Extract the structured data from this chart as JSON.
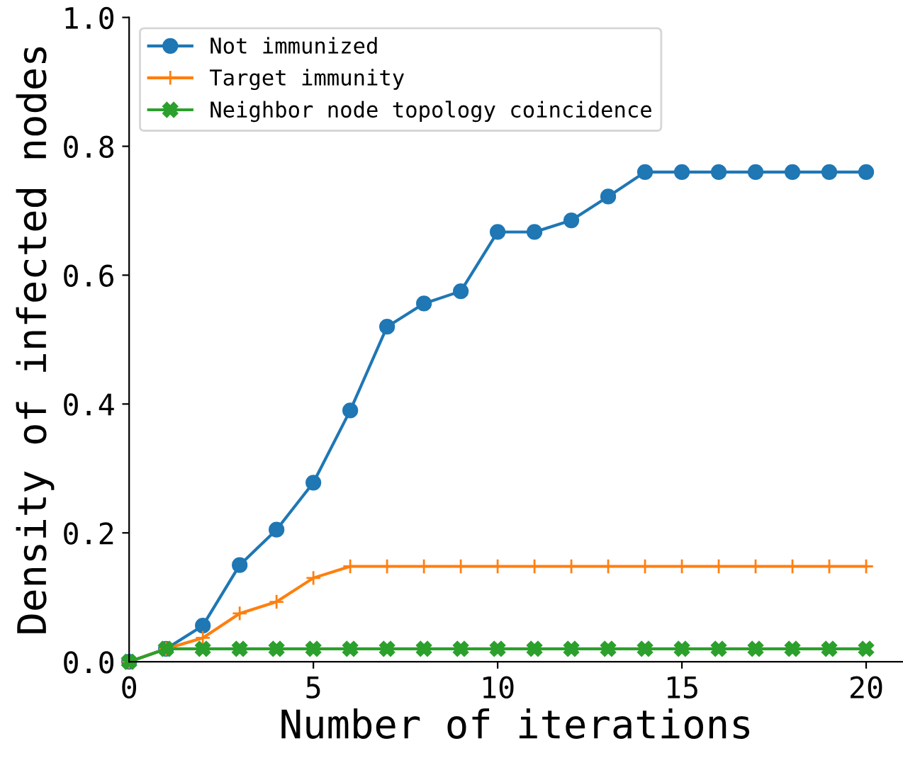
{
  "chart_data": {
    "type": "line",
    "xlabel": "Number of iterations",
    "ylabel": "Density of infected nodes",
    "x": [
      0,
      1,
      2,
      3,
      4,
      5,
      6,
      7,
      8,
      9,
      10,
      11,
      12,
      13,
      14,
      15,
      16,
      17,
      18,
      19,
      20
    ],
    "series": [
      {
        "name": "Not immunized",
        "color": "#1f77b4",
        "marker": "circle",
        "values": [
          0,
          0.02,
          0.056,
          0.15,
          0.205,
          0.278,
          0.39,
          0.52,
          0.556,
          0.575,
          0.667,
          0.667,
          0.685,
          0.722,
          0.76,
          0.76,
          0.76,
          0.76,
          0.76,
          0.76,
          0.76
        ]
      },
      {
        "name": "Target immunity",
        "color": "#ff7f0e",
        "marker": "cross",
        "values": [
          0,
          0.02,
          0.037,
          0.075,
          0.093,
          0.13,
          0.148,
          0.148,
          0.148,
          0.148,
          0.148,
          0.148,
          0.148,
          0.148,
          0.148,
          0.148,
          0.148,
          0.148,
          0.148,
          0.148,
          0.148
        ]
      },
      {
        "name": "Neighbor node topology coincidence",
        "color": "#2ca02c",
        "marker": "x",
        "values": [
          0,
          0.02,
          0.02,
          0.02,
          0.02,
          0.02,
          0.02,
          0.02,
          0.02,
          0.02,
          0.02,
          0.02,
          0.02,
          0.02,
          0.02,
          0.02,
          0.02,
          0.02,
          0.02,
          0.02,
          0.02
        ]
      }
    ],
    "xlim": [
      0,
      21
    ],
    "ylim": [
      0,
      1.0
    ],
    "xticks": [
      0,
      5,
      10,
      15,
      20
    ],
    "yticks": [
      {
        "value": 0,
        "label": "0.0"
      },
      {
        "value": 0.2,
        "label": "0.2"
      },
      {
        "value": 0.4,
        "label": "0.4"
      },
      {
        "value": 0.6,
        "label": "0.6"
      },
      {
        "value": 0.8,
        "label": "0.8"
      },
      {
        "value": 1.0,
        "label": "1.0"
      }
    ],
    "legend": "top left",
    "grid": false,
    "line_style": "solid"
  }
}
